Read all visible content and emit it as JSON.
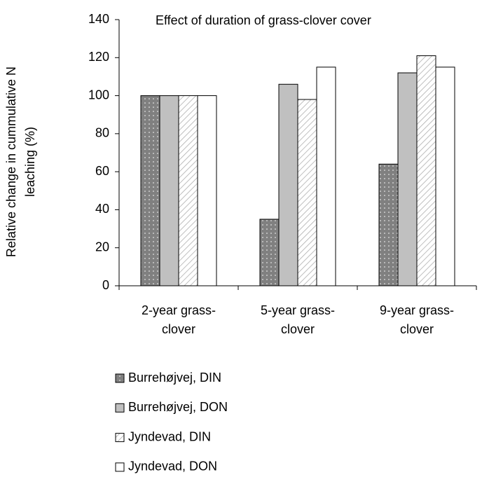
{
  "chart_data": {
    "type": "bar",
    "title": "Effect of duration of grass-clover cover",
    "y_label": "Relative change in cummulative N leaching (%)",
    "categories": [
      "2-year grass-clover",
      "5-year grass-clover",
      "9-year grass-clover"
    ],
    "series": [
      {
        "name": "Burrehøjvej, DIN",
        "color": "#808080",
        "pattern": "dots",
        "values": [
          100,
          35,
          64
        ]
      },
      {
        "name": "Burrehøjvej, DON",
        "color": "#c0c0c0",
        "pattern": "solid",
        "values": [
          100,
          106,
          112
        ]
      },
      {
        "name": "Jyndevad, DIN",
        "color": "#ffffff",
        "pattern": "hatch",
        "values": [
          100,
          98,
          121
        ]
      },
      {
        "name": "Jyndevad, DON",
        "color": "#ffffff",
        "pattern": "solid",
        "values": [
          100,
          115,
          115
        ]
      }
    ],
    "ylim": [
      0,
      140
    ],
    "yticks": [
      0,
      20,
      40,
      60,
      80,
      100,
      120,
      140
    ],
    "grid": false
  }
}
